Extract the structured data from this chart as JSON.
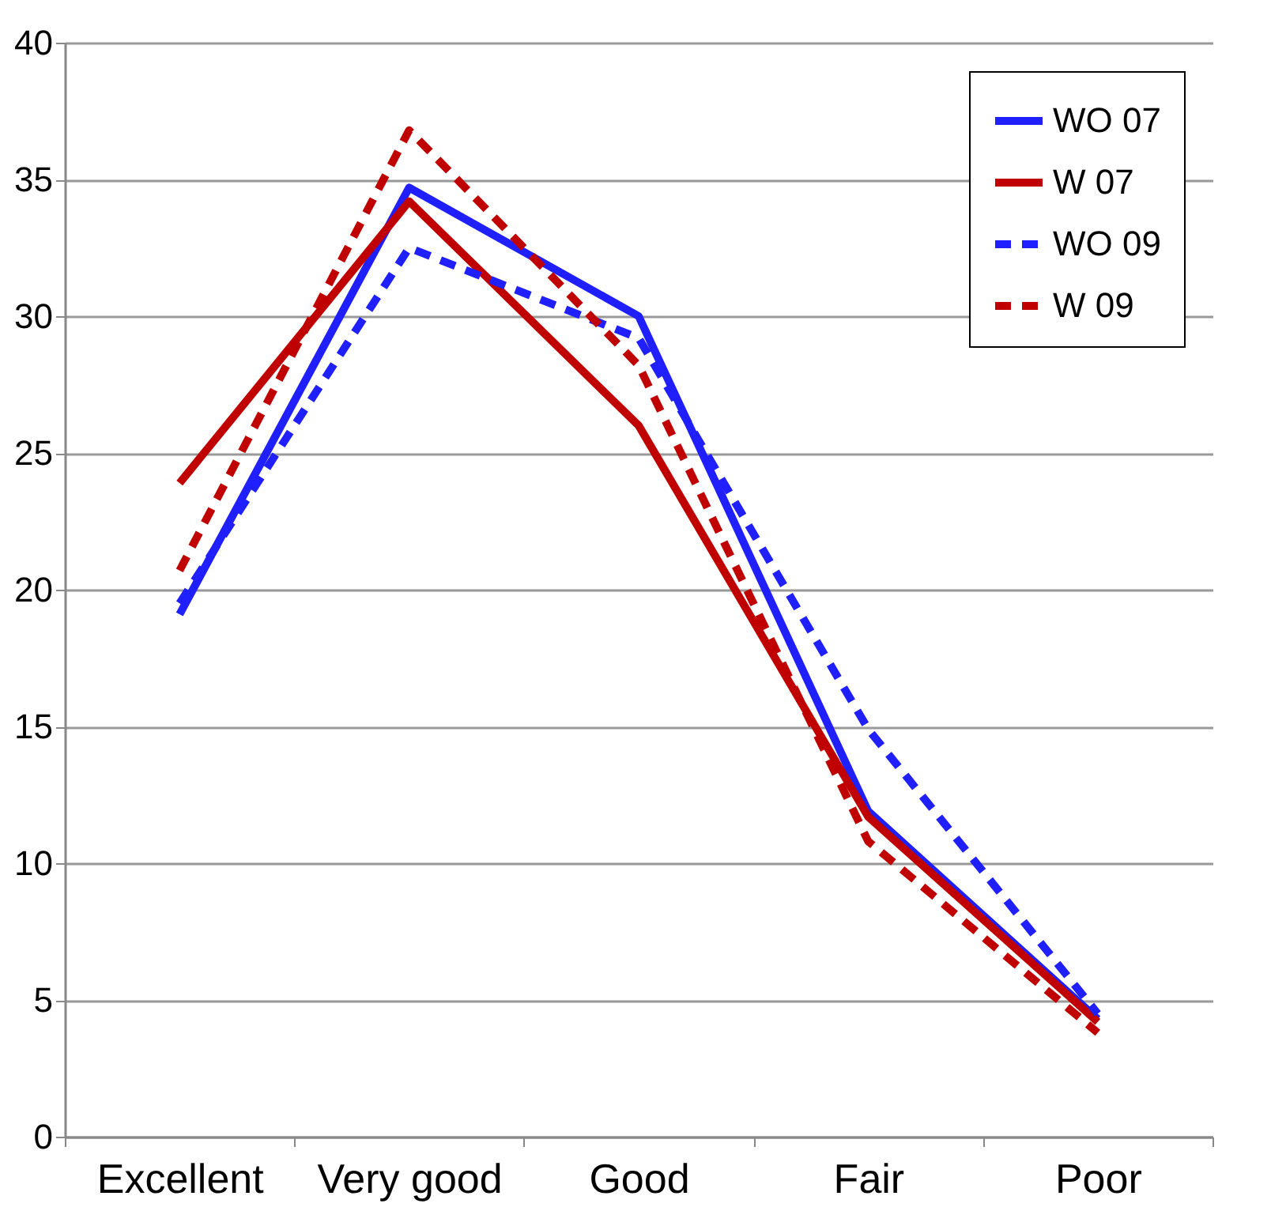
{
  "chart_data": {
    "type": "line",
    "categories": [
      "Excellent",
      "Very good",
      "Good",
      "Fair",
      "Poor"
    ],
    "ylim": [
      0,
      40
    ],
    "yticks": [
      0,
      5,
      10,
      15,
      20,
      25,
      30,
      35,
      40
    ],
    "grid": "y",
    "legend": "top right",
    "series": [
      {
        "name": "WO 07",
        "color": "#1f1fff",
        "line_style": "solid",
        "values": [
          19.1,
          34.7,
          30.0,
          11.9,
          4.3
        ]
      },
      {
        "name": "W 07",
        "color": "#c00000",
        "line_style": "solid",
        "values": [
          23.9,
          34.2,
          26.0,
          11.7,
          4.2
        ]
      },
      {
        "name": "WO 09",
        "color": "#1f1fff",
        "line_style": "dashed",
        "values": [
          19.5,
          32.5,
          29.2,
          14.9,
          4.5
        ]
      },
      {
        "name": "W 09",
        "color": "#c00000",
        "line_style": "dashed",
        "values": [
          20.7,
          36.8,
          28.2,
          10.8,
          3.8
        ]
      }
    ]
  }
}
